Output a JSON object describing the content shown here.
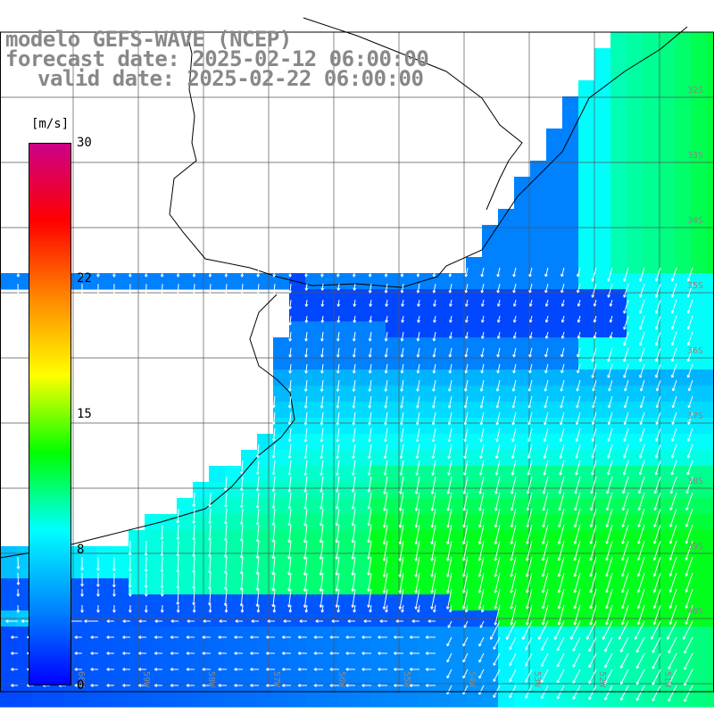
{
  "title": {
    "line1": "modelo GEFS-WAVE (NCEP)",
    "line2": "forecast date: 2025-02-12 06:00:00",
    "line3": "valid date: 2025-02-22 06:00:00"
  },
  "colorbar": {
    "units": "[m/s]",
    "ticks": [
      "30",
      "22",
      "15",
      "8",
      "0"
    ],
    "tick_values": [
      30,
      22,
      15,
      8,
      0
    ],
    "colors": [
      "#0000ff",
      "#0088ff",
      "#00ffff",
      "#00ff00",
      "#ffff00",
      "#ff8800",
      "#ff0000",
      "#cc0088"
    ]
  },
  "map": {
    "lat_labels": [
      "32S",
      "33S",
      "34S",
      "35S",
      "36S",
      "37S",
      "38S",
      "39S",
      "40S"
    ],
    "lon_labels": [
      "60W",
      "59W",
      "58W",
      "57W",
      "56W",
      "55W",
      "54W",
      "53W",
      "52W",
      "51W"
    ],
    "land_color": "#ffffff",
    "grid_color": "#555555",
    "arrow_color": "#ffffff"
  }
}
